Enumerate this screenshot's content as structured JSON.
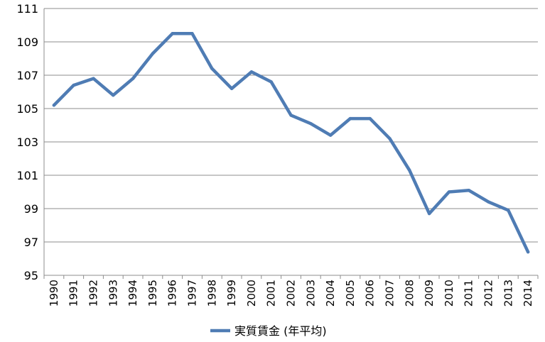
{
  "chart_data": {
    "type": "line",
    "title": "",
    "xlabel": "",
    "ylabel": "",
    "ylim": [
      95,
      111
    ],
    "y_ticks": [
      "95",
      "97",
      "99",
      "101",
      "103",
      "105",
      "107",
      "109",
      "111"
    ],
    "grid": "horizontal",
    "legend_position": "bottom",
    "categories": [
      "1990",
      "1991",
      "1992",
      "1993",
      "1994",
      "1995",
      "1996",
      "1997",
      "1998",
      "1999",
      "2000",
      "2001",
      "2002",
      "2003",
      "2004",
      "2005",
      "2006",
      "2007",
      "2008",
      "2009",
      "2010",
      "2011",
      "2012",
      "2013",
      "2014"
    ],
    "series": [
      {
        "name": "実質賃金 (年平均)",
        "color": "#4f7cb4",
        "values": [
          105.2,
          106.4,
          106.8,
          105.8,
          106.8,
          108.3,
          109.5,
          109.5,
          107.4,
          106.2,
          107.2,
          106.6,
          104.6,
          104.1,
          103.4,
          104.4,
          104.4,
          103.2,
          101.3,
          98.7,
          100.0,
          100.1,
          99.4,
          98.9,
          96.4
        ]
      }
    ]
  }
}
